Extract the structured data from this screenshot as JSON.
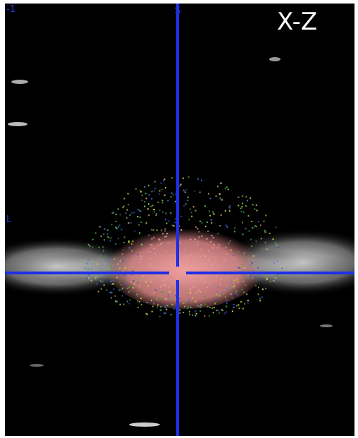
{
  "view_label": "X-Z",
  "markers": {
    "top_left": "-1",
    "top": "S",
    "left": "L"
  }
}
